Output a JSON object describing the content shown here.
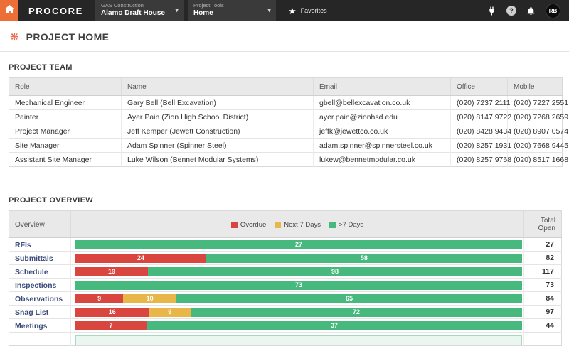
{
  "topbar": {
    "logo": "PROCORE",
    "accent_color": "#ed6f38",
    "company_label": "GAS Construction",
    "company_value": "Alamo Draft House",
    "tools_label": "Project Tools",
    "tools_value": "Home",
    "favorites_label": "Favorites",
    "avatar_initials": "RB"
  },
  "page": {
    "title": "PROJECT HOME"
  },
  "team": {
    "section_title": "PROJECT TEAM",
    "columns": [
      "Role",
      "Name",
      "Email",
      "Office",
      "Mobile"
    ],
    "rows": [
      {
        "role": "Mechanical Engineer",
        "name": "Gary Bell (Bell Excavation)",
        "email": "gbell@bellexcavation.co.uk",
        "office": "(020) 7237 2111",
        "mobile": "(020) 7227 2551"
      },
      {
        "role": "Painter",
        "name": "Ayer Pain (Zion High School District)",
        "email": "ayer.pain@zionhsd.edu",
        "office": "(020) 8147 9722",
        "mobile": "(020) 7268 2659"
      },
      {
        "role": "Project Manager",
        "name": "Jeff Kemper (Jewett Construction)",
        "email": "jeffk@jewettco.co.uk",
        "office": "(020) 8428 9434",
        "mobile": "(020) 8907 0574"
      },
      {
        "role": "Site Manager",
        "name": "Adam Spinner (Spinner Steel)",
        "email": "adam.spinner@spinnersteel.co.uk",
        "office": "(020) 8257 1931",
        "mobile": "(020) 7668 9445"
      },
      {
        "role": "Assistant Site Manager",
        "name": "Luke Wilson (Bennet Modular Systems)",
        "email": "lukew@bennetmodular.co.uk",
        "office": "(020) 8257 9768",
        "mobile": "(020) 8517 1668"
      }
    ]
  },
  "overview": {
    "section_title": "PROJECT OVERVIEW",
    "col_overview": "Overview",
    "col_total": "Total Open",
    "legend": [
      {
        "label": "Overdue",
        "color": "#d9453f"
      },
      {
        "label": "Next 7 Days",
        "color": "#e9b64a"
      },
      {
        "label": ">7 Days",
        "color": "#47b87e"
      }
    ],
    "rows": [
      {
        "label": "RFIs",
        "overdue": 0,
        "next7": 0,
        "later": 27,
        "total": 27
      },
      {
        "label": "Submittals",
        "overdue": 24,
        "next7": 0,
        "later": 58,
        "total": 82
      },
      {
        "label": "Schedule",
        "overdue": 19,
        "next7": 0,
        "later": 98,
        "total": 117
      },
      {
        "label": "Inspections",
        "overdue": 0,
        "next7": 0,
        "later": 73,
        "total": 73
      },
      {
        "label": "Observations",
        "overdue": 9,
        "next7": 10,
        "later": 65,
        "total": 84
      },
      {
        "label": "Snag List",
        "overdue": 16,
        "next7": 9,
        "later": 72,
        "total": 97
      },
      {
        "label": "Meetings",
        "overdue": 7,
        "next7": 0,
        "later": 37,
        "total": 44
      }
    ]
  }
}
